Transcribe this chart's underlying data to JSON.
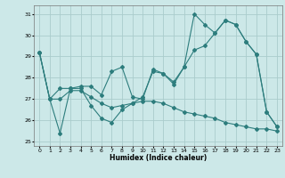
{
  "title": "",
  "xlabel": "Humidex (Indice chaleur)",
  "bg_color": "#cce8e8",
  "grid_color": "#aacccc",
  "line_color": "#2d7d7d",
  "xlim": [
    -0.5,
    23.5
  ],
  "ylim": [
    24.8,
    31.4
  ],
  "yticks": [
    25,
    26,
    27,
    28,
    29,
    30,
    31
  ],
  "xticks": [
    0,
    1,
    2,
    3,
    4,
    5,
    6,
    7,
    8,
    9,
    10,
    11,
    12,
    13,
    14,
    15,
    16,
    17,
    18,
    19,
    20,
    21,
    22,
    23
  ],
  "series1_x": [
    0,
    1,
    2,
    3,
    4,
    5,
    6,
    7,
    8,
    9,
    10,
    11,
    12,
    13,
    14,
    15,
    16,
    17,
    18,
    19,
    20,
    21,
    22,
    23
  ],
  "series1_y": [
    29.2,
    27.0,
    27.5,
    27.5,
    27.6,
    27.6,
    27.2,
    28.3,
    28.5,
    27.1,
    27.0,
    28.4,
    28.2,
    27.7,
    28.5,
    29.3,
    29.5,
    30.1,
    30.7,
    30.5,
    29.7,
    29.1,
    26.4,
    25.7
  ],
  "series2_x": [
    0,
    1,
    2,
    3,
    4,
    5,
    6,
    7,
    8,
    9,
    10,
    11,
    12,
    13,
    14,
    15,
    16,
    17,
    18,
    19,
    20,
    21,
    22,
    23
  ],
  "series2_y": [
    29.2,
    27.0,
    25.4,
    27.5,
    27.5,
    26.7,
    26.1,
    25.9,
    26.5,
    26.8,
    27.1,
    28.3,
    28.2,
    27.8,
    28.5,
    31.0,
    30.5,
    30.1,
    30.7,
    30.5,
    29.7,
    29.1,
    26.4,
    25.7
  ],
  "series3_x": [
    0,
    1,
    2,
    3,
    4,
    5,
    6,
    7,
    8,
    9,
    10,
    11,
    12,
    13,
    14,
    15,
    16,
    17,
    18,
    19,
    20,
    21,
    22,
    23
  ],
  "series3_y": [
    29.2,
    27.0,
    27.0,
    27.4,
    27.4,
    27.1,
    26.8,
    26.6,
    26.7,
    26.8,
    26.9,
    26.9,
    26.8,
    26.6,
    26.4,
    26.3,
    26.2,
    26.1,
    25.9,
    25.8,
    25.7,
    25.6,
    25.6,
    25.5
  ]
}
